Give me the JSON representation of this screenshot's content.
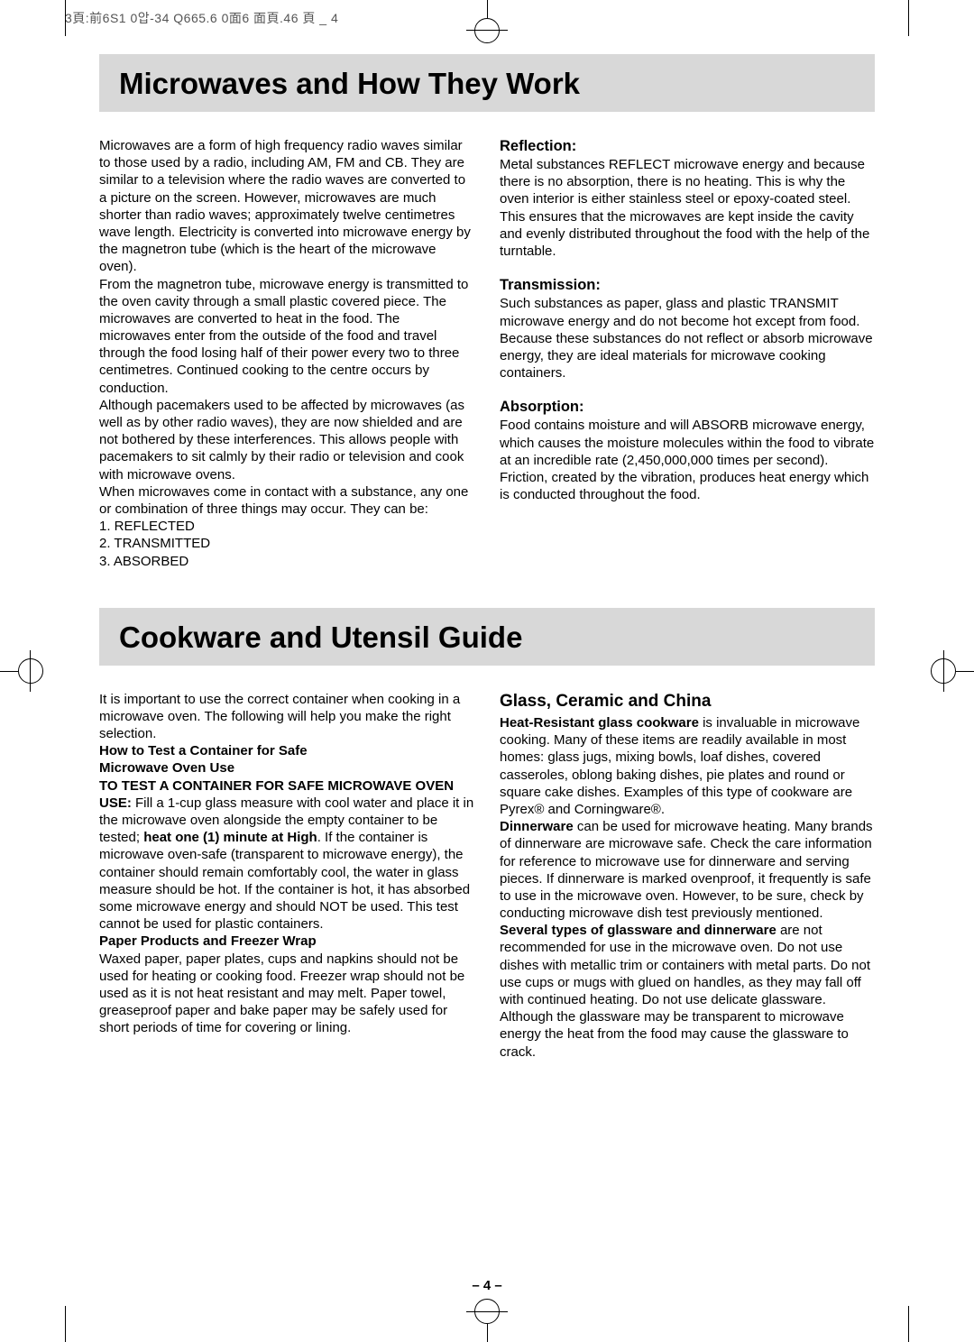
{
  "meta_header": "3頁:前6S1 0압-34  Q665.6 0面6 面頁.46  頁 _ 4",
  "page_number": "– 4 –",
  "colors": {
    "title_bg": "#d8d8d8",
    "text": "#000000",
    "background": "#ffffff"
  },
  "typography": {
    "title_fontsize": 33,
    "subhead_fontsize": 16.5,
    "subhead2_fontsize": 19,
    "body_fontsize": 15,
    "line_height": 1.28
  },
  "section1": {
    "title": "Microwaves and How They Work",
    "left": {
      "p1": "Microwaves are a form of high frequency radio waves similar to those used by a radio, including AM, FM and CB. They are similar to a television where the radio waves are converted to a picture on the screen. However, microwaves are much shorter than radio waves; approximately twelve centimetres wave length. Electricity is converted into microwave energy by the magnetron tube (which is the heart of the microwave oven).",
      "p2": "From the magnetron tube, microwave energy is transmitted to the oven cavity through a small plastic covered piece. The microwaves are converted to heat in the food. The microwaves enter from the outside of the food and travel through the food losing half of their power every two to three centimetres. Continued cooking to the centre occurs by conduction.",
      "p3": "Although pacemakers used to be affected by microwaves (as well as by other radio waves), they are now shielded and are not bothered by these interferences. This allows people with pacemakers to sit calmly by their radio or television and cook with microwave ovens.",
      "p4": "When microwaves come in contact with a substance, any one or combination of three things may occur. They can be:",
      "li1": "1. REFLECTED",
      "li2": "2. TRANSMITTED",
      "li3": "3. ABSORBED"
    },
    "right": {
      "h1": "Reflection:",
      "p1": "Metal substances REFLECT microwave energy and because there is no absorption, there is no heating. This is why the oven interior is either stainless steel or epoxy-coated steel. This ensures that the microwaves are kept inside the cavity and evenly distributed throughout the food with the help of the turntable.",
      "h2": "Transmission:",
      "p2": "Such substances as paper, glass and plastic TRANSMIT microwave energy and do not become hot except from food. Because these substances do not reflect or absorb microwave energy, they are ideal materials for microwave cooking containers.",
      "h3": "Absorption:",
      "p3": "Food contains moisture and will ABSORB microwave energy, which causes the moisture molecules within the food to vibrate at an incredible rate (2,450,000,000 times per second). Friction, created by the vibration, produces heat energy which is conducted throughout the food."
    }
  },
  "section2": {
    "title": "Cookware and Utensil Guide",
    "left": {
      "p1": "It is important to use the correct container when cooking in a microwave oven. The following will help you make the right selection.",
      "h1a": "How to Test a Container for Safe",
      "h1b": "Microwave Oven Use",
      "p2a": "TO TEST A CONTAINER FOR SAFE MICROWAVE OVEN USE:",
      "p2b": " Fill a 1-cup glass measure with cool water and place it in the microwave oven alongside the empty container to be tested; ",
      "p2c": "heat one (1) minute at High",
      "p2d": ". If the container is microwave oven-safe (transparent to microwave energy), the container should remain comfortably cool, the water in glass measure should be hot. If the container is hot, it has absorbed some microwave energy and should NOT be used. This test cannot be used for plastic containers.",
      "h2": "Paper Products and Freezer Wrap",
      "p3": "Waxed paper, paper plates, cups and napkins should not be used for heating or cooking food. Freezer wrap should not be used as it is not heat resistant and may melt. Paper towel, greaseproof paper and bake paper may be safely used for short periods of time for covering or lining."
    },
    "right": {
      "h1": "Glass, Ceramic and China",
      "p1a": "Heat-Resistant glass cookware",
      "p1b": " is invaluable in microwave cooking. Many of these items are readily available in most homes: glass jugs, mixing bowls, loaf dishes, covered casseroles, oblong baking dishes, pie plates and round or square cake dishes. Examples of this type of cookware are Pyrex® and Corningware®.",
      "p2a": "Dinnerware",
      "p2b": " can be used for microwave heating. Many brands of dinnerware are microwave safe. Check the care information for reference to microwave use for dinnerware and serving pieces. If dinnerware is marked ovenproof, it frequently is safe to use in the microwave oven. However, to be sure, check by conducting microwave dish test previously mentioned.",
      "p3a": "Several types of glassware and dinnerware",
      "p3b": " are not recommended for use in the microwave oven. Do not use dishes with metallic trim or containers with metal parts. Do not use cups or mugs with glued on handles, as they may fall off with continued heating. Do not use delicate glassware. Although the glassware may be transparent to microwave energy the heat from the food may cause the glassware to crack."
    }
  }
}
